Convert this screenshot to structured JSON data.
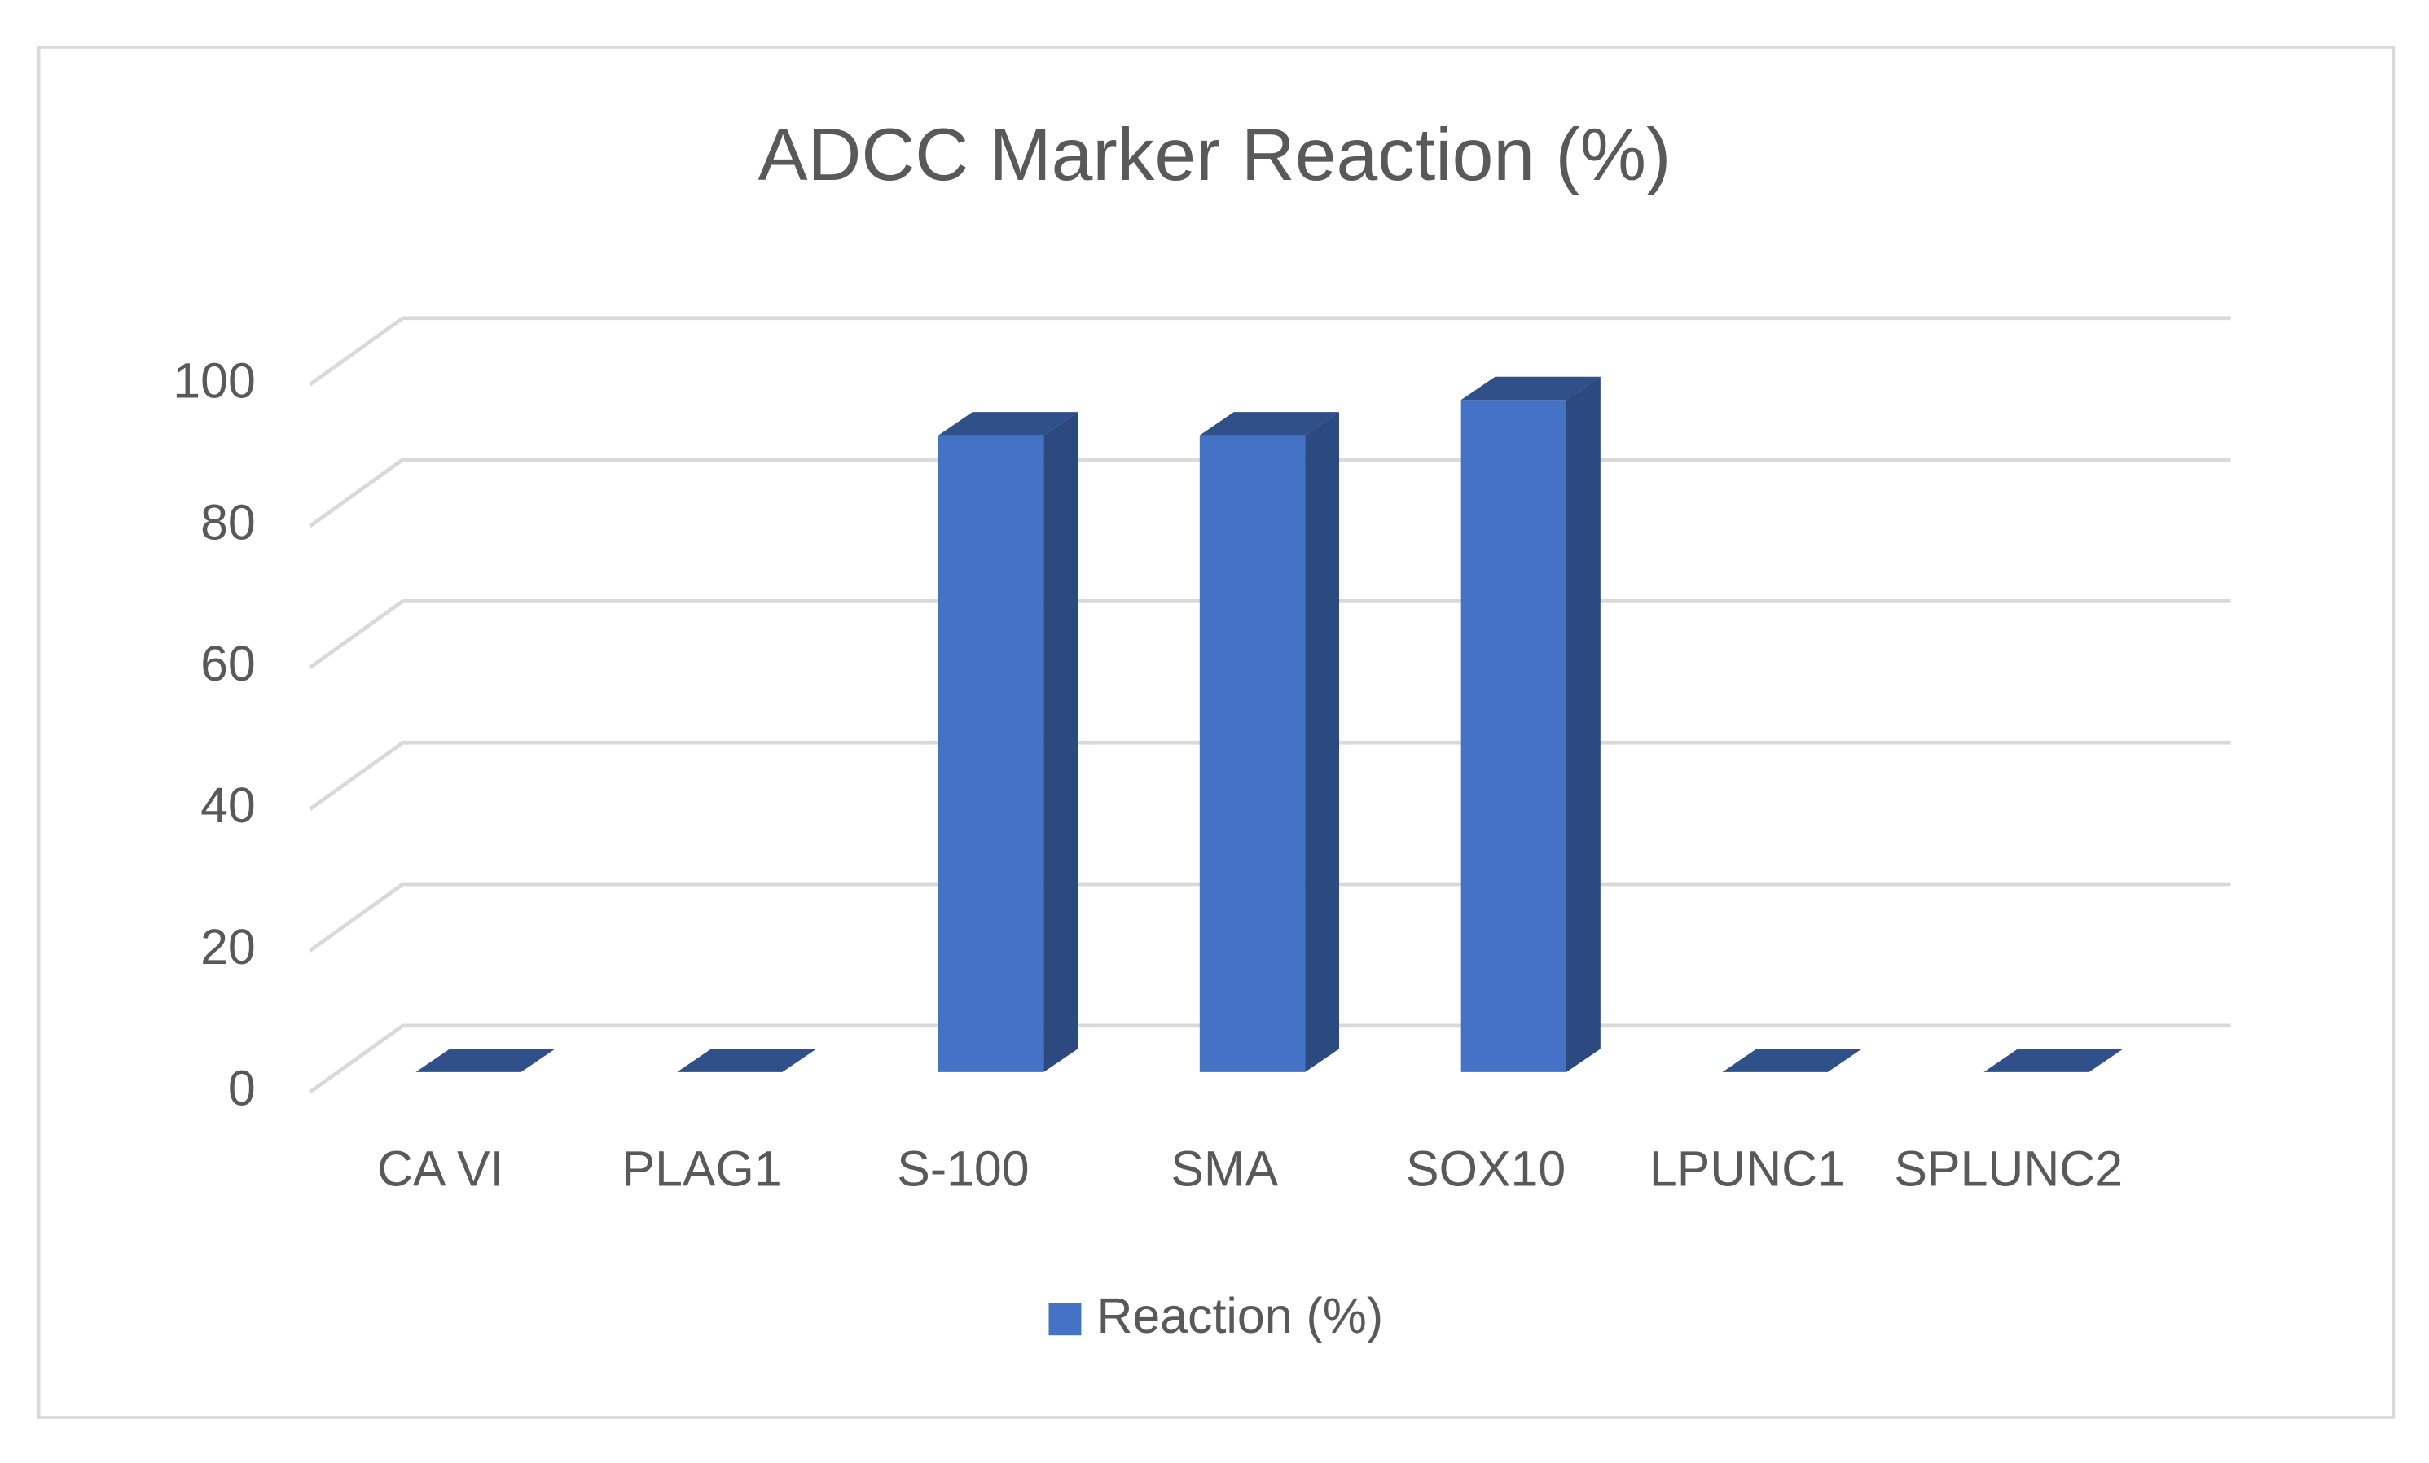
{
  "chart_data": {
    "type": "bar3d",
    "title": "ADCC Marker Reaction (%)",
    "categories": [
      "CA VI",
      "PLAG1",
      "S-100",
      "SMA",
      "SOX10",
      "LPUNC1",
      "SPLUNC2"
    ],
    "series": [
      {
        "name": "Reaction (%)",
        "color": "#4472c4",
        "values": [
          0,
          0,
          90,
          90,
          95,
          0,
          0
        ]
      }
    ],
    "ylim": [
      0,
      100
    ],
    "yticks": [
      0,
      20,
      40,
      60,
      80,
      100
    ],
    "grid": true,
    "legend": "bottom"
  }
}
